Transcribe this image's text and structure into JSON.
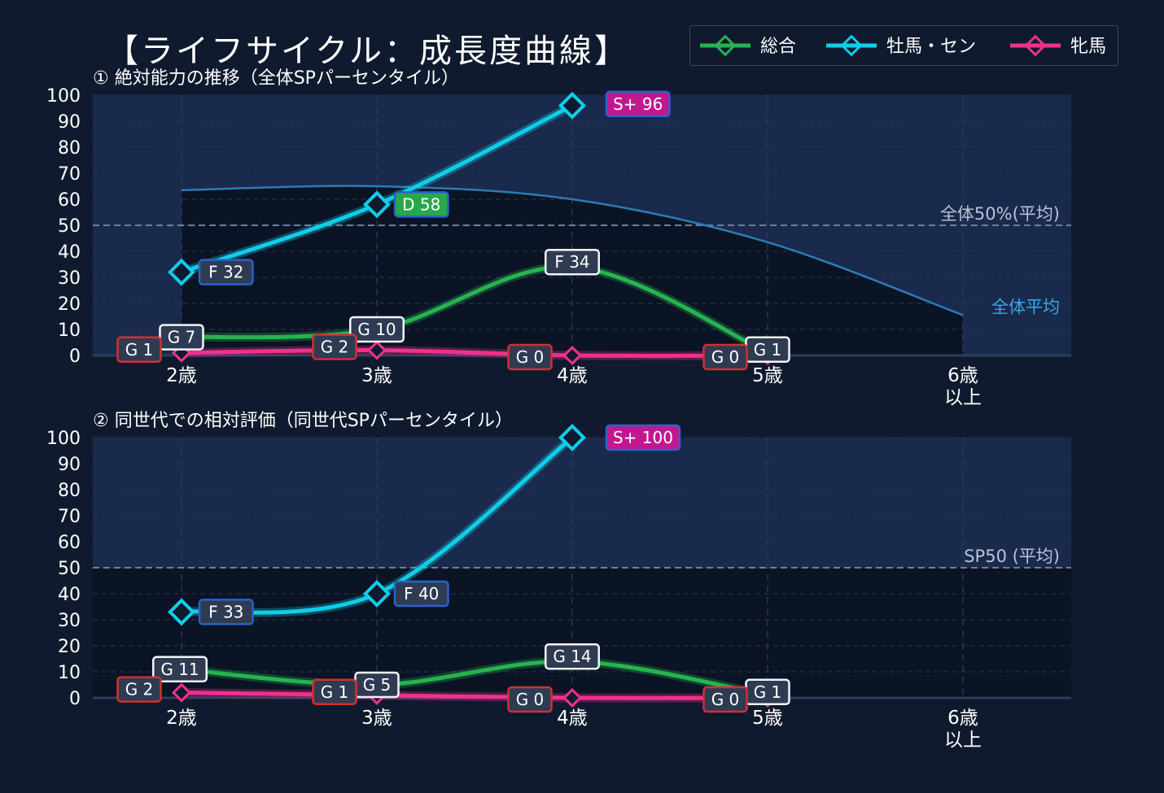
{
  "title": "【ライフサイクル：成長度曲線】",
  "legend": [
    {
      "name": "総合",
      "color": "#27b34f"
    },
    {
      "name": "牡馬・セン",
      "color": "#10cde8"
    },
    {
      "name": "牝馬",
      "color": "#f0318c"
    }
  ],
  "chart_data": [
    {
      "type": "line",
      "subtitle": "① 絶対能力の推移（全体SPパーセンタイル）",
      "x": [
        "2歳",
        "3歳",
        "4歳",
        "5歳",
        "6歳\n以上"
      ],
      "ylim": [
        0,
        100
      ],
      "yticks": [
        0,
        10,
        20,
        30,
        40,
        50,
        60,
        70,
        80,
        90,
        100
      ],
      "grid": true,
      "reference": {
        "y": 50,
        "label": "全体50%(平均)"
      },
      "average_curve": {
        "label": "全体平均",
        "values": [
          63.5,
          65,
          60,
          43.5,
          15.5
        ]
      },
      "series": [
        {
          "name": "総合",
          "key": "total",
          "values": [
            7,
            10,
            34,
            1,
            null
          ],
          "labels": [
            "G 7",
            "G 10",
            "F 34",
            "G 1",
            null
          ]
        },
        {
          "name": "牡馬・セン",
          "key": "male",
          "values": [
            32,
            58,
            96,
            null,
            null
          ],
          "labels": [
            "F 32",
            "D 58",
            "S+ 96",
            null,
            null
          ]
        },
        {
          "name": "牝馬",
          "key": "female",
          "values": [
            1,
            2,
            0,
            0,
            null
          ],
          "labels": [
            "G 1",
            "G 2",
            "G 0",
            "G 0",
            null
          ]
        }
      ]
    },
    {
      "type": "line",
      "subtitle": "② 同世代での相対評価（同世代SPパーセンタイル）",
      "x": [
        "2歳",
        "3歳",
        "4歳",
        "5歳",
        "6歳\n以上"
      ],
      "ylim": [
        0,
        100
      ],
      "yticks": [
        0,
        10,
        20,
        30,
        40,
        50,
        60,
        70,
        80,
        90,
        100
      ],
      "grid": true,
      "reference": {
        "y": 50,
        "label": "SP50 (平均)"
      },
      "series": [
        {
          "name": "総合",
          "key": "total",
          "values": [
            11,
            5,
            14,
            1,
            null
          ],
          "labels": [
            "G 11",
            "G 5",
            "G 14",
            "G 1",
            null
          ]
        },
        {
          "name": "牡馬・セン",
          "key": "male",
          "values": [
            33,
            40,
            100,
            null,
            null
          ],
          "labels": [
            "F 33",
            "F 40",
            "S+ 100",
            null,
            null
          ]
        },
        {
          "name": "牝馬",
          "key": "female",
          "values": [
            2,
            1,
            0,
            0,
            null
          ],
          "labels": [
            "G 2",
            "G 1",
            "G 0",
            "G 0",
            null
          ]
        }
      ]
    }
  ],
  "colors": {
    "background": "#0f1a2e",
    "plot_bg": "#0b1424",
    "band": "#1a2a4c",
    "grade_G": "#d32f2f",
    "grade_F": "#2962cc",
    "grade_D": "#27a84a",
    "grade_Splus": "#c2188f",
    "avg_curve": "#2c7bb6",
    "avg_label": "#3ba6e6"
  }
}
